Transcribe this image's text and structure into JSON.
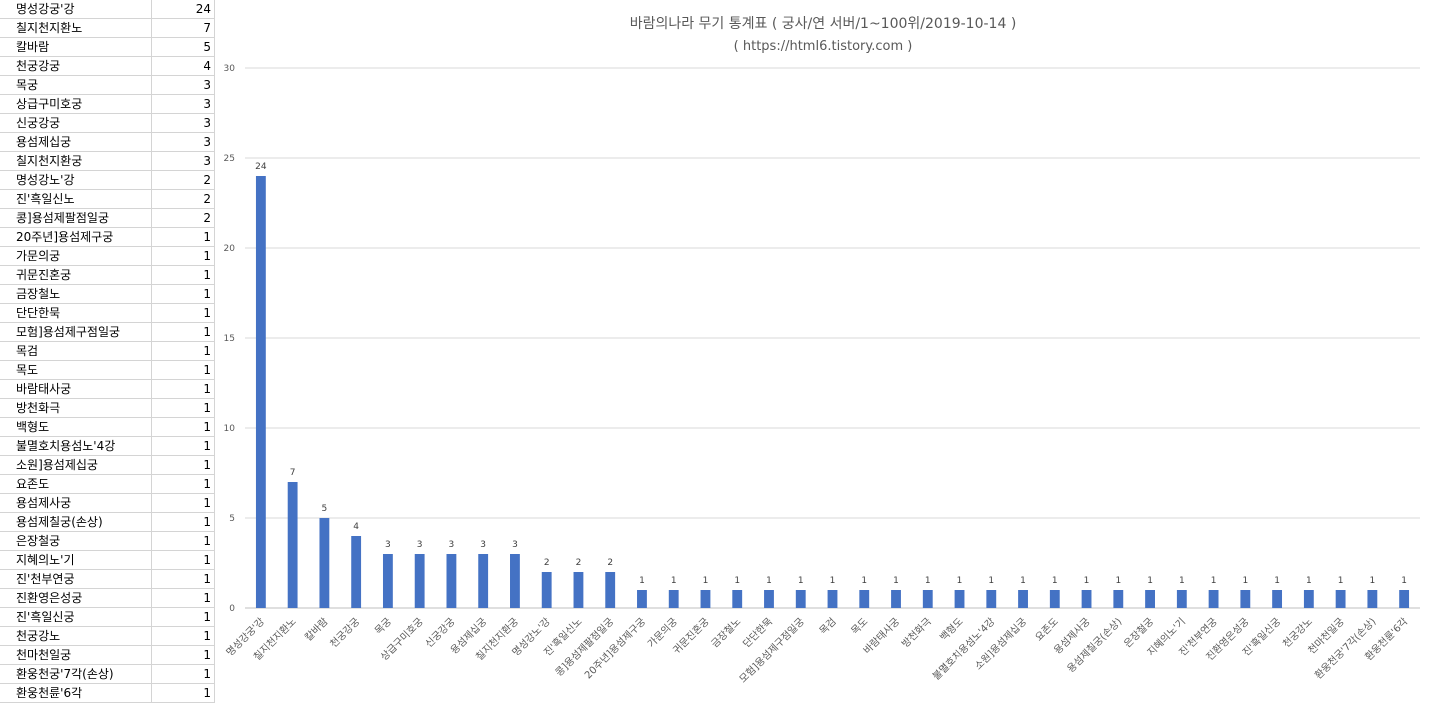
{
  "sheet": {
    "rows": [
      {
        "name": "명성강궁'강",
        "count": "24"
      },
      {
        "name": "칠지천지환노",
        "count": "7"
      },
      {
        "name": "칼바람",
        "count": "5"
      },
      {
        "name": "천궁강궁",
        "count": "4"
      },
      {
        "name": "목궁",
        "count": "3"
      },
      {
        "name": "상급구미호궁",
        "count": "3"
      },
      {
        "name": "신궁강궁",
        "count": "3"
      },
      {
        "name": "용섬제십궁",
        "count": "3"
      },
      {
        "name": "칠지천지환궁",
        "count": "3"
      },
      {
        "name": "명성강노'강",
        "count": "2"
      },
      {
        "name": "진'흑일신노",
        "count": "2"
      },
      {
        "name": "콩]용섬제팔점일궁",
        "count": "2"
      },
      {
        "name": "20주년]용섬제구궁",
        "count": "1"
      },
      {
        "name": "가문의궁",
        "count": "1"
      },
      {
        "name": "귀문진혼궁",
        "count": "1"
      },
      {
        "name": "금장철노",
        "count": "1"
      },
      {
        "name": "단단한묵",
        "count": "1"
      },
      {
        "name": "모험]용섬제구점일궁",
        "count": "1"
      },
      {
        "name": "목검",
        "count": "1"
      },
      {
        "name": "목도",
        "count": "1"
      },
      {
        "name": "바람태사궁",
        "count": "1"
      },
      {
        "name": "방천화극",
        "count": "1"
      },
      {
        "name": "백형도",
        "count": "1"
      },
      {
        "name": "불멸호치용섬노'4강",
        "count": "1"
      },
      {
        "name": "소원]용섬제십궁",
        "count": "1"
      },
      {
        "name": "요존도",
        "count": "1"
      },
      {
        "name": "용섬제사궁",
        "count": "1"
      },
      {
        "name": "용섬제칠궁(손상)",
        "count": "1"
      },
      {
        "name": "은장철궁",
        "count": "1"
      },
      {
        "name": "지혜의노'기",
        "count": "1"
      },
      {
        "name": "진'천부연궁",
        "count": "1"
      },
      {
        "name": "진환영은성궁",
        "count": "1"
      },
      {
        "name": "진'흑일신궁",
        "count": "1"
      },
      {
        "name": "천궁강노",
        "count": "1"
      },
      {
        "name": "천마천일궁",
        "count": "1"
      },
      {
        "name": "환웅천궁'7각(손상)",
        "count": "1"
      },
      {
        "name": "환웅천륜'6각",
        "count": "1"
      }
    ]
  },
  "chart_data": {
    "type": "bar",
    "title": "바람의나라 무기 통계표 ( 궁사/연 서버/1~100위/2019-10-14 )",
    "subtitle": "( https://html6.tistory.com )",
    "xlabel": "",
    "ylabel": "",
    "ylim": [
      0,
      30
    ],
    "yticks": [
      0,
      5,
      10,
      15,
      20,
      25,
      30
    ],
    "grid": true,
    "legend": "none",
    "bar_color": "#4472c4",
    "categories": [
      "명성강궁'강",
      "칠지천지환노",
      "칼바람",
      "천궁강궁",
      "목궁",
      "상급구미호궁",
      "신궁강궁",
      "용섬제십궁",
      "칠지천지환궁",
      "명성강노'강",
      "진'흑일신노",
      "콩]용섬제팔점일궁",
      "20주년]용섬제구궁",
      "가문의궁",
      "귀문진혼궁",
      "금장철노",
      "단단한묵",
      "모험]용섬제구점일궁",
      "목검",
      "목도",
      "바람태사궁",
      "방천화극",
      "백형도",
      "불멸호치용섬노'4강",
      "소원]용섬제십궁",
      "요존도",
      "용섬제사궁",
      "용섬제칠궁(손상)",
      "은장철궁",
      "지혜의노'기",
      "진'천부연궁",
      "진환영은성궁",
      "진'흑일신궁",
      "천궁강노",
      "천마천일궁",
      "환웅천궁'7각(손상)",
      "환웅천륜'6각"
    ],
    "values": [
      24,
      7,
      5,
      4,
      3,
      3,
      3,
      3,
      3,
      2,
      2,
      2,
      1,
      1,
      1,
      1,
      1,
      1,
      1,
      1,
      1,
      1,
      1,
      1,
      1,
      1,
      1,
      1,
      1,
      1,
      1,
      1,
      1,
      1,
      1,
      1,
      1
    ]
  }
}
